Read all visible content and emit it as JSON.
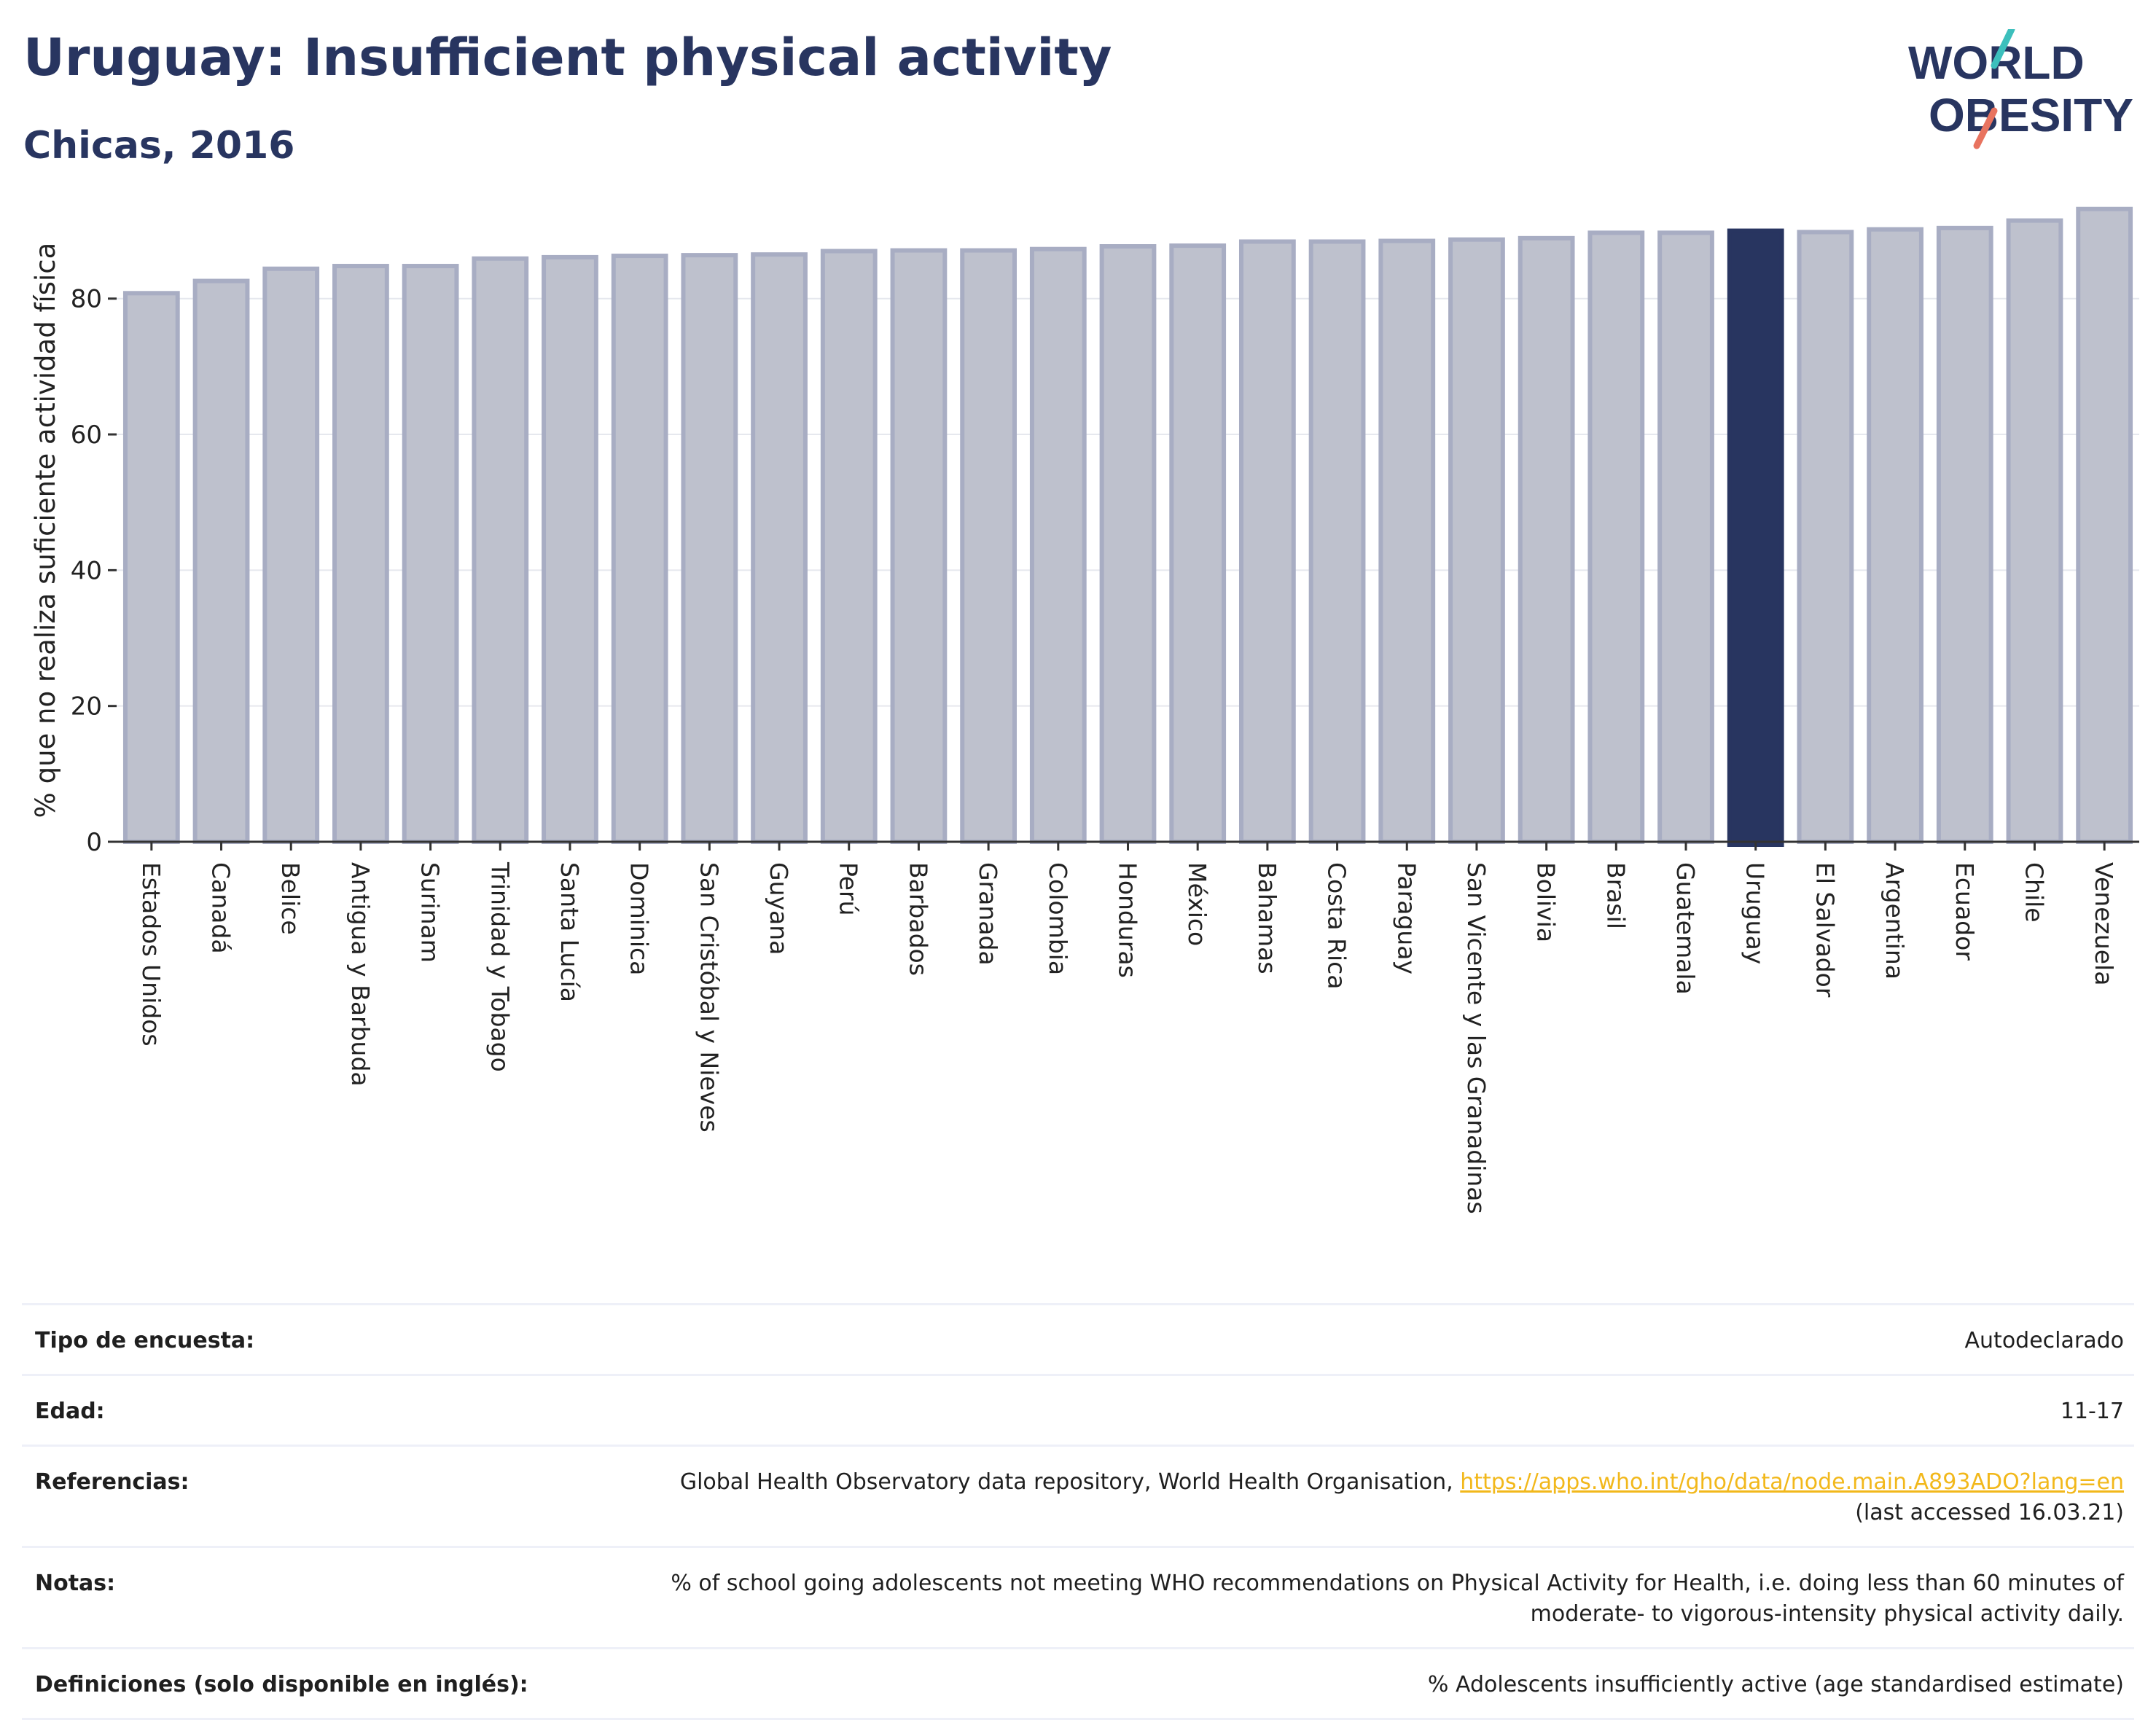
{
  "header": {
    "title": "Uruguay: Insufficient physical activity",
    "subtitle": "Chicas, 2016",
    "logo_line1": "WORLD",
    "logo_line2": "OBESITY"
  },
  "colors": {
    "bar_default": "#bec1cd",
    "bar_border": "#a8adc3",
    "bar_highlight": "#283560",
    "title": "#283560",
    "link": "#f2b81b",
    "logo_teal": "#3cbfbc",
    "logo_coral": "#e8735f"
  },
  "chart_data": {
    "type": "bar",
    "ylabel": "% que no realiza suficiente actividad física",
    "ylim": [
      0,
      95
    ],
    "yticks": [
      0,
      20,
      40,
      60,
      80
    ],
    "grid": true,
    "highlight": "Uruguay",
    "categories": [
      "Estados Unidos",
      "Canadá",
      "Belice",
      "Antigua y Barbuda",
      "Surinam",
      "Trinidad y Tobago",
      "Santa Lucía",
      "Dominica",
      "San Cristóbal y Nieves",
      "Guyana",
      "Perú",
      "Barbados",
      "Granada",
      "Colombia",
      "Honduras",
      "México",
      "Bahamas",
      "Costa Rica",
      "Paraguay",
      "San Vicente y las Granadinas",
      "Bolivia",
      "Brasil",
      "Guatemala",
      "Uruguay",
      "El Salvador",
      "Argentina",
      "Ecuador",
      "Chile",
      "Venezuela"
    ],
    "values": [
      80.8,
      82.6,
      84.4,
      84.8,
      84.8,
      85.9,
      86.1,
      86.3,
      86.4,
      86.5,
      87.0,
      87.1,
      87.1,
      87.3,
      87.7,
      87.8,
      88.4,
      88.4,
      88.5,
      88.7,
      88.9,
      89.7,
      89.7,
      90.0,
      89.8,
      90.2,
      90.4,
      91.5,
      93.2
    ]
  },
  "footer": {
    "rows": [
      {
        "label": "Tipo de encuesta:",
        "value": "Autodeclarado"
      },
      {
        "label": "Edad:",
        "value": "11-17"
      },
      {
        "label": "Referencias:",
        "value": "Global Health Observatory data repository, World Health Organisation,",
        "link": "https://apps.who.int/gho/data/node.main.A893ADO?lang=en",
        "value2": "(last accessed 16.03.21)"
      },
      {
        "label": "Notas:",
        "value": "% of school going adolescents not meeting WHO recommendations on Physical Activity for Health, i.e. doing less than 60 minutes of",
        "value2": "moderate- to vigorous-intensity physical activity daily."
      },
      {
        "label": "Definiciones (solo disponible en inglés):",
        "value": "% Adolescents insufficiently active (age standardised estimate)"
      }
    ]
  }
}
